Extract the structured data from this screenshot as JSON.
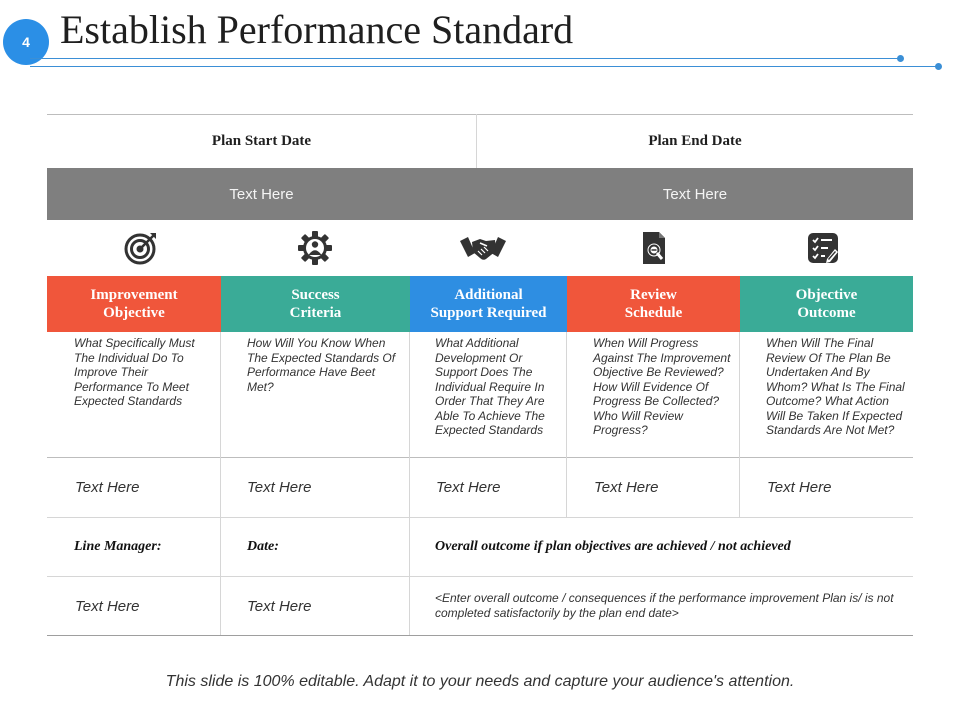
{
  "slide": {
    "number": "4",
    "title": "Establish Performance Standard",
    "accent_color": "#2b8fe6"
  },
  "plan": {
    "start_label": "Plan Start Date",
    "end_label": "Plan End Date",
    "start_value": "Text Here",
    "end_value": "Text Here"
  },
  "columns": [
    {
      "icon": "target-icon",
      "label": "Improvement\nObjective",
      "color": "#f0563b",
      "description": "What Specifically Must The Individual Do To Improve Their Performance To Meet Expected Standards",
      "value": "Text Here"
    },
    {
      "icon": "gear-person-icon",
      "label": "Success\nCriteria",
      "color": "#3aab97",
      "description": "How Will You Know When The Expected Standards Of Performance Have Beet Met?",
      "value": "Text Here"
    },
    {
      "icon": "handshake-icon",
      "label": "Additional\nSupport Required",
      "color": "#2e8ee2",
      "description": "What Additional Development Or Support Does The Individual Require In Order That They Are Able To Achieve The Expected Standards",
      "value": "Text Here"
    },
    {
      "icon": "document-search-icon",
      "label": "Review\nSchedule",
      "color": "#f0563b",
      "description": "When Will Progress Against The Improvement Objective Be Reviewed? How Will Evidence Of Progress Be Collected? Who Will Review Progress?",
      "value": "Text Here"
    },
    {
      "icon": "checklist-icon",
      "label": "Objective\nOutcome",
      "color": "#3aab97",
      "description": "When Will The Final Review Of The Plan Be Undertaken And By Whom? What Is The Final Outcome? What Action Will Be Taken If Expected Standards Are Not Met?",
      "value": "Text Here"
    }
  ],
  "signoff": {
    "line_manager_label": "Line Manager:",
    "date_label": "Date:",
    "outcome_label": "Overall outcome if plan objectives are achieved / not achieved",
    "line_manager_value": "Text Here",
    "date_value": "Text Here",
    "outcome_value": "<Enter overall outcome / consequences if the performance improvement Plan is/ is not completed satisfactorily by the plan end date>"
  },
  "footer": "This slide is 100% editable. Adapt it to your needs and capture your audience's attention."
}
